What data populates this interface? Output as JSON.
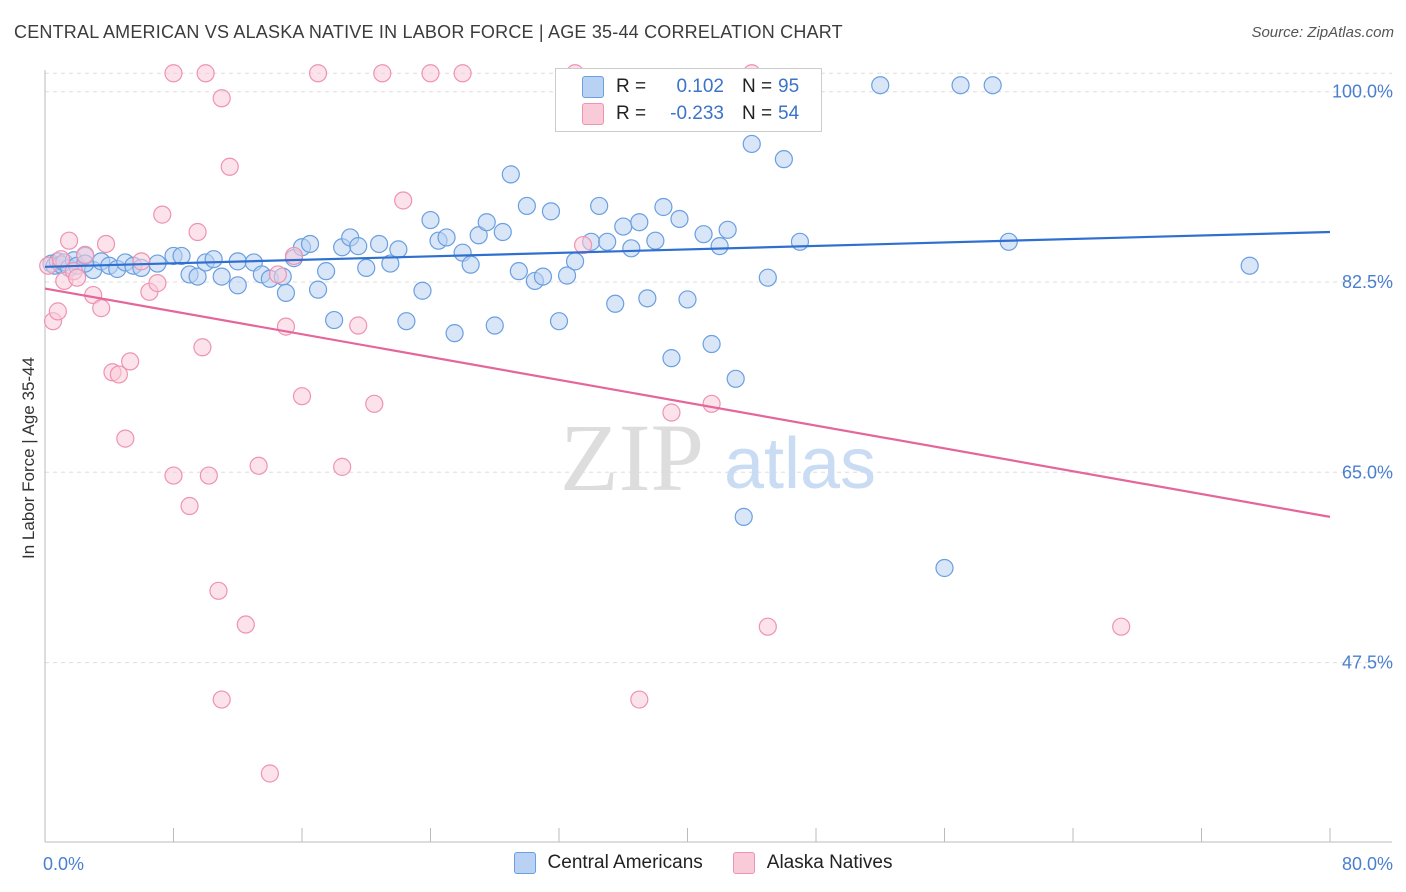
{
  "title": "CENTRAL AMERICAN VS ALASKA NATIVE IN LABOR FORCE | AGE 35-44 CORRELATION CHART",
  "source": "Source: ZipAtlas.com",
  "watermark": {
    "zip": "ZIP",
    "atlas": "atlas"
  },
  "legend": {
    "rows": [
      {
        "r_label": "R =",
        "r_value": "0.102",
        "n_label": "N =",
        "n_value": "95",
        "color": "#a9c6ee"
      },
      {
        "r_label": "R =",
        "r_value": "-0.233",
        "n_label": "N =",
        "n_value": "54",
        "color": "#f6b8cb"
      }
    ]
  },
  "bottom_legend": [
    {
      "label": "Central Americans",
      "color": "#a9c6ee"
    },
    {
      "label": "Alaska Natives",
      "color": "#f6b8cb"
    }
  ],
  "chart_data": {
    "type": "scatter",
    "title": "CENTRAL AMERICAN VS ALASKA NATIVE IN LABOR FORCE | AGE 35-44 CORRELATION CHART",
    "xlabel": "",
    "ylabel": "In Labor Force | Age 35-44",
    "xlim": [
      0,
      80
    ],
    "ylim": [
      31,
      102
    ],
    "x_tick_labels": [
      "0.0%",
      "80.0%"
    ],
    "y_ticks": [
      47.5,
      65.0,
      82.5,
      100.0
    ],
    "y_tick_labels": [
      "47.5%",
      "65.0%",
      "82.5%",
      "100.0%"
    ],
    "grid": true,
    "series": [
      {
        "name": "Central Americans",
        "color": "#6a9fe0",
        "fill": "#b9d1f2",
        "trend": {
          "x": [
            0,
            80
          ],
          "y": [
            83.9,
            87.1
          ],
          "color": "#2f6fd0"
        },
        "points": [
          [
            0.4,
            84.2
          ],
          [
            0.6,
            84.0
          ],
          [
            0.8,
            84.4
          ],
          [
            1.0,
            84.1
          ],
          [
            1.2,
            84.3
          ],
          [
            1.5,
            83.8
          ],
          [
            1.8,
            84.5
          ],
          [
            2.0,
            84.0
          ],
          [
            2.5,
            84.9
          ],
          [
            3.0,
            83.6
          ],
          [
            3.5,
            84.4
          ],
          [
            4.0,
            84.0
          ],
          [
            4.5,
            83.7
          ],
          [
            5.0,
            84.3
          ],
          [
            5.5,
            84.0
          ],
          [
            6.0,
            83.8
          ],
          [
            7.0,
            84.2
          ],
          [
            8.0,
            84.9
          ],
          [
            8.5,
            84.9
          ],
          [
            9.0,
            83.2
          ],
          [
            9.5,
            83.0
          ],
          [
            10.0,
            84.3
          ],
          [
            10.5,
            84.6
          ],
          [
            11.0,
            83.0
          ],
          [
            12.0,
            84.4
          ],
          [
            12.0,
            82.2
          ],
          [
            13.0,
            84.3
          ],
          [
            13.5,
            83.2
          ],
          [
            14.0,
            82.8
          ],
          [
            14.8,
            83.0
          ],
          [
            15.0,
            81.5
          ],
          [
            15.5,
            84.7
          ],
          [
            16.0,
            85.7
          ],
          [
            16.5,
            86.0
          ],
          [
            17.0,
            81.8
          ],
          [
            17.5,
            83.5
          ],
          [
            18.0,
            79.0
          ],
          [
            18.5,
            85.7
          ],
          [
            19.0,
            86.6
          ],
          [
            19.5,
            85.8
          ],
          [
            20.0,
            83.8
          ],
          [
            20.8,
            86.0
          ],
          [
            21.5,
            84.2
          ],
          [
            22.0,
            85.5
          ],
          [
            22.5,
            78.9
          ],
          [
            23.5,
            81.7
          ],
          [
            24.0,
            88.2
          ],
          [
            24.5,
            86.3
          ],
          [
            25.0,
            86.6
          ],
          [
            25.5,
            77.8
          ],
          [
            26.0,
            85.2
          ],
          [
            26.5,
            84.1
          ],
          [
            27.0,
            86.8
          ],
          [
            27.5,
            88.0
          ],
          [
            28.0,
            78.5
          ],
          [
            28.5,
            87.1
          ],
          [
            29.0,
            92.4
          ],
          [
            29.5,
            83.5
          ],
          [
            30.0,
            89.5
          ],
          [
            30.5,
            82.6
          ],
          [
            31.0,
            83.0
          ],
          [
            31.5,
            89.0
          ],
          [
            32.0,
            78.9
          ],
          [
            32.5,
            83.1
          ],
          [
            33.0,
            84.4
          ],
          [
            34.0,
            86.2
          ],
          [
            34.5,
            89.5
          ],
          [
            35.0,
            86.2
          ],
          [
            35.5,
            80.5
          ],
          [
            36.0,
            87.6
          ],
          [
            36.5,
            85.6
          ],
          [
            37.0,
            88.0
          ],
          [
            37.5,
            81.0
          ],
          [
            38.0,
            86.3
          ],
          [
            38.5,
            89.4
          ],
          [
            39.0,
            75.5
          ],
          [
            39.5,
            88.3
          ],
          [
            40.0,
            80.9
          ],
          [
            41.0,
            86.9
          ],
          [
            41.5,
            76.8
          ],
          [
            42.0,
            85.8
          ],
          [
            42.5,
            87.3
          ],
          [
            43.0,
            73.6
          ],
          [
            43.5,
            60.9
          ],
          [
            44.0,
            95.2
          ],
          [
            45.0,
            82.9
          ],
          [
            46.0,
            93.8
          ],
          [
            47.0,
            86.2
          ],
          [
            52.0,
            100.6
          ],
          [
            56.0,
            56.2
          ],
          [
            57.0,
            100.6
          ],
          [
            59.0,
            100.6
          ],
          [
            60.0,
            86.2
          ],
          [
            75.0,
            84.0
          ],
          [
            2.5,
            84.2
          ]
        ]
      },
      {
        "name": "Alaska Natives",
        "color": "#ef93b0",
        "fill": "#f9cbd9",
        "trend": {
          "x": [
            0,
            80
          ],
          "y": [
            81.9,
            60.9
          ],
          "color": "#e4669a"
        },
        "points": [
          [
            0.2,
            84.0
          ],
          [
            0.5,
            78.9
          ],
          [
            0.8,
            79.8
          ],
          [
            1.0,
            84.6
          ],
          [
            1.2,
            82.6
          ],
          [
            1.5,
            86.3
          ],
          [
            1.8,
            83.5
          ],
          [
            2.0,
            82.9
          ],
          [
            2.5,
            85.0
          ],
          [
            3.0,
            81.3
          ],
          [
            3.5,
            80.1
          ],
          [
            3.8,
            86.0
          ],
          [
            4.2,
            74.2
          ],
          [
            4.6,
            74.0
          ],
          [
            5.0,
            68.1
          ],
          [
            5.3,
            75.2
          ],
          [
            6.0,
            84.4
          ],
          [
            6.5,
            81.6
          ],
          [
            7.0,
            82.4
          ],
          [
            7.3,
            88.7
          ],
          [
            8.0,
            64.7
          ],
          [
            9.0,
            61.9
          ],
          [
            9.5,
            87.1
          ],
          [
            9.8,
            76.5
          ],
          [
            10.2,
            64.7
          ],
          [
            10.8,
            54.1
          ],
          [
            11.0,
            44.1
          ],
          [
            11.5,
            93.1
          ],
          [
            12.5,
            51.0
          ],
          [
            13.3,
            65.6
          ],
          [
            14.0,
            37.3
          ],
          [
            14.5,
            83.2
          ],
          [
            15.0,
            78.4
          ],
          [
            15.5,
            84.9
          ],
          [
            16.0,
            72.0
          ],
          [
            17.0,
            101.7
          ],
          [
            18.5,
            65.5
          ],
          [
            19.5,
            78.5
          ],
          [
            20.5,
            71.3
          ],
          [
            21.0,
            101.7
          ],
          [
            22.3,
            90.0
          ],
          [
            24.0,
            101.7
          ],
          [
            26.0,
            101.7
          ],
          [
            33.0,
            101.7
          ],
          [
            33.5,
            85.9
          ],
          [
            37.0,
            44.1
          ],
          [
            39.0,
            70.5
          ],
          [
            41.5,
            71.3
          ],
          [
            44.0,
            101.7
          ],
          [
            45.0,
            50.8
          ],
          [
            67.0,
            50.8
          ],
          [
            8.0,
            101.7
          ],
          [
            10.0,
            101.7
          ],
          [
            11.0,
            99.4
          ]
        ]
      }
    ]
  }
}
